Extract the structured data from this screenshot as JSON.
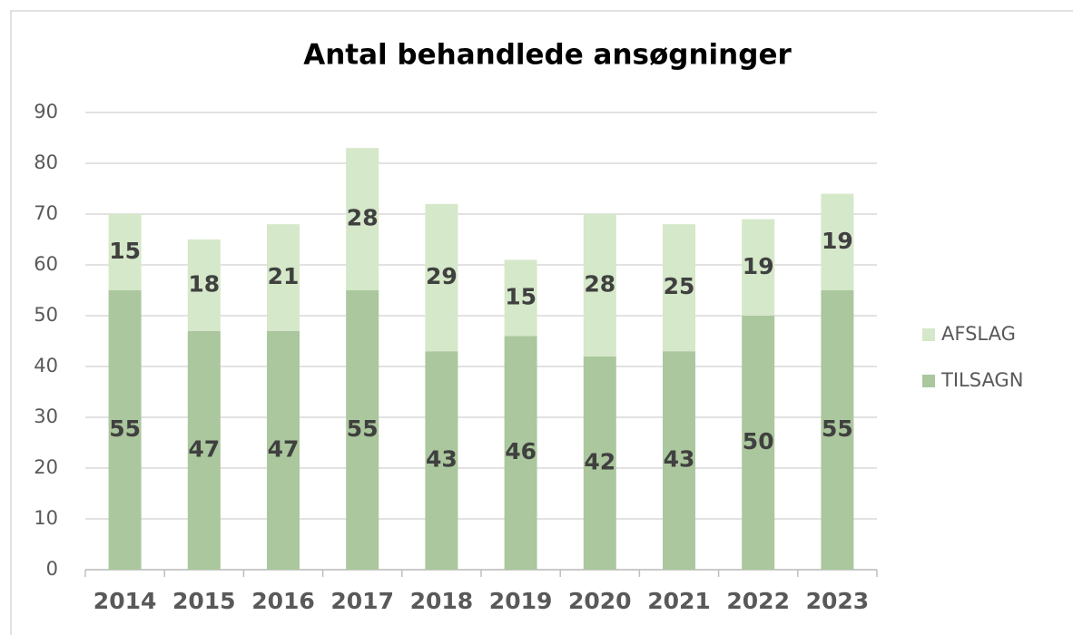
{
  "chart_data": {
    "type": "stacked_bar",
    "title": "Antal behandlede ansøgninger",
    "categories": [
      "2014",
      "2015",
      "2016",
      "2017",
      "2018",
      "2019",
      "2020",
      "2021",
      "2022",
      "2023"
    ],
    "series": [
      {
        "name": "TILSAGN",
        "color": "#abc79d",
        "values": [
          55,
          47,
          47,
          55,
          43,
          46,
          42,
          43,
          50,
          55
        ]
      },
      {
        "name": "AFSLAG",
        "color": "#d5e8c9",
        "values": [
          15,
          18,
          21,
          28,
          29,
          15,
          28,
          25,
          19,
          19
        ]
      }
    ],
    "ylim": [
      0,
      90
    ],
    "yticks": [
      0,
      10,
      20,
      30,
      40,
      50,
      60,
      70,
      80,
      90
    ],
    "grid": true,
    "legend": "right"
  }
}
